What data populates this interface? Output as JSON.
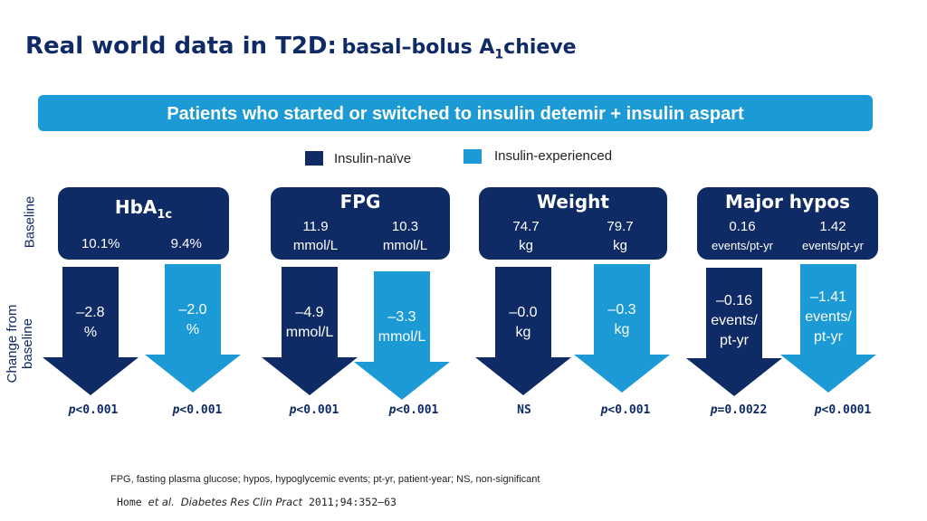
{
  "title": {
    "main": "Real world data in T2D:",
    "sub_prefix": "basal–bolus A",
    "sub_subscript": "1",
    "sub_suffix": "chieve"
  },
  "banner": "Patients who started or switched to insulin detemir + insulin aspart",
  "legend": {
    "naive": "Insulin-naïve",
    "experienced": "Insulin-experienced",
    "naive_color": "#0f2b66",
    "experienced_color": "#1b9ad6"
  },
  "row_labels": {
    "baseline": "Baseline",
    "change_line1": "Change from",
    "change_line2": "baseline"
  },
  "panels": [
    {
      "title": "HbA",
      "title_sub": "1c",
      "baseline": [
        [
          "10.1%"
        ],
        [
          "9.4%"
        ]
      ],
      "change": [
        [
          "–2.8",
          "%"
        ],
        [
          "–2.0",
          "%"
        ]
      ],
      "p": [
        "p<0.001",
        "p<0.001"
      ]
    },
    {
      "title": "FPG",
      "title_sub": "",
      "baseline": [
        [
          "11.9",
          "mmol/L"
        ],
        [
          "10.3",
          "mmol/L"
        ]
      ],
      "change": [
        [
          "–4.9",
          "mmol/L"
        ],
        [
          "–3.3",
          "mmol/L"
        ]
      ],
      "p": [
        "p<0.001",
        "p<0.001"
      ]
    },
    {
      "title": "Weight",
      "title_sub": "",
      "baseline": [
        [
          "74.7",
          "kg"
        ],
        [
          "79.7",
          "kg"
        ]
      ],
      "change": [
        [
          "–0.0",
          "kg"
        ],
        [
          "–0.3",
          "kg"
        ]
      ],
      "p": [
        "NS",
        "p<0.001"
      ]
    },
    {
      "title": "Major hypos",
      "title_sub": "",
      "baseline": [
        [
          "0.16",
          "events/pt-yr"
        ],
        [
          "1.42",
          "events/pt-yr"
        ]
      ],
      "change": [
        [
          "–0.16",
          "events/",
          "pt-yr"
        ],
        [
          "–1.41",
          "events/",
          "pt-yr"
        ]
      ],
      "p": [
        "p=0.0022",
        "p<0.0001"
      ]
    }
  ],
  "footnote": "FPG, fasting plasma glucose; hypos, hypoglycemic events; pt-yr, patient-year; NS, non-significant",
  "reference": {
    "author": "Home",
    "etal": "et al.",
    "journal": "Diabetes Res Clin Pract",
    "details": "2011;94:352–63"
  }
}
